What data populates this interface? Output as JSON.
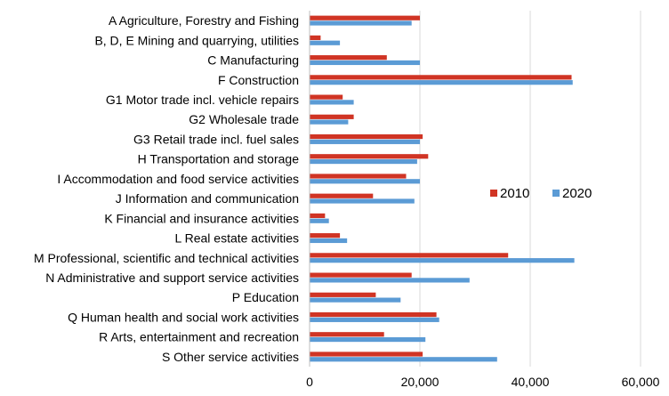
{
  "chart_data": {
    "type": "bar",
    "orientation": "horizontal",
    "title": "",
    "xlabel": "",
    "ylabel": "",
    "categories": [
      "A Agriculture, Forestry and Fishing",
      "B, D, E Mining and quarrying, utilities",
      "C Manufacturing",
      "F Construction",
      "G1 Motor trade incl. vehicle repairs",
      "G2 Wholesale trade",
      "G3 Retail trade incl. fuel sales",
      "H Transportation and storage",
      "I Accommodation and food service activities",
      "J Information and communication",
      "K Financial and insurance activities",
      "L Real estate activities",
      "M Professional, scientific and technical activities",
      "N Administrative and support service activities",
      "P Education",
      "Q Human health and social work activities",
      "R Arts, entertainment and recreation",
      "S Other service activities"
    ],
    "series": [
      {
        "name": "2010",
        "color": "#d03424",
        "values": [
          20000,
          2000,
          14000,
          47500,
          6000,
          8000,
          20500,
          21500,
          17500,
          11500,
          2800,
          5500,
          36000,
          18500,
          12000,
          23000,
          13500,
          20500
        ]
      },
      {
        "name": "2020",
        "color": "#5b9bd5",
        "values": [
          18500,
          5500,
          20000,
          47700,
          8000,
          7000,
          20000,
          19500,
          20000,
          19000,
          3500,
          6800,
          48000,
          29000,
          16500,
          23500,
          21000,
          34000
        ]
      }
    ],
    "xlim": [
      0,
      60000
    ],
    "xticks": [
      "0",
      "20,000",
      "40,000",
      "60,000"
    ],
    "xtick_values": [
      0,
      20000,
      40000,
      60000
    ],
    "grid": "vertical",
    "legend_position": "right"
  }
}
